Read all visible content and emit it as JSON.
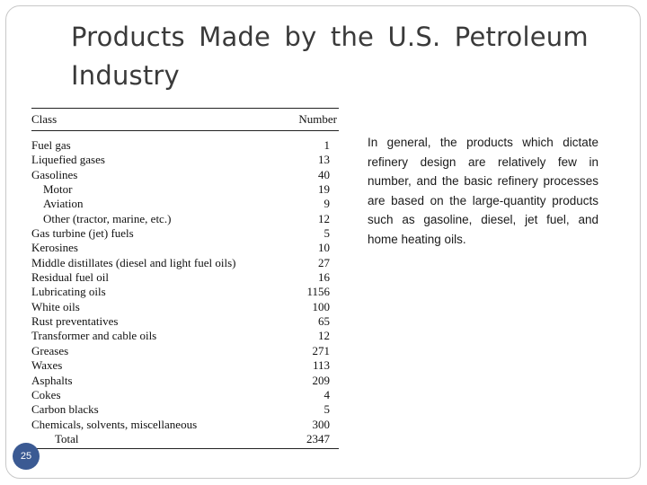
{
  "slide": {
    "title": "Products Made by the U.S. Petroleum Industry",
    "page_number": "25",
    "body_text": "In general, the products which dictate refinery design are relatively few in number, and the basic refinery processes are based on the large-quantity products such as gasoline, diesel, jet fuel, and home heating oils."
  },
  "table": {
    "headers": {
      "class": "Class",
      "number": "Number"
    },
    "rows": [
      {
        "class": "Fuel gas",
        "number": "1",
        "indent": 0
      },
      {
        "class": "Liquefied gases",
        "number": "13",
        "indent": 0
      },
      {
        "class": "Gasolines",
        "number": "40",
        "indent": 0
      },
      {
        "class": "Motor",
        "number": "19",
        "indent": 1
      },
      {
        "class": "Aviation",
        "number": "9",
        "indent": 1
      },
      {
        "class": "Other (tractor, marine, etc.)",
        "number": "12",
        "indent": 1
      },
      {
        "class": "Gas turbine (jet) fuels",
        "number": "5",
        "indent": 0
      },
      {
        "class": "Kerosines",
        "number": "10",
        "indent": 0
      },
      {
        "class": "Middle distillates (diesel and light fuel oils)",
        "number": "27",
        "indent": 0
      },
      {
        "class": "Residual fuel oil",
        "number": "16",
        "indent": 0
      },
      {
        "class": "Lubricating oils",
        "number": "1156",
        "indent": 0
      },
      {
        "class": "White oils",
        "number": "100",
        "indent": 0
      },
      {
        "class": "Rust preventatives",
        "number": "65",
        "indent": 0
      },
      {
        "class": "Transformer and cable oils",
        "number": "12",
        "indent": 0
      },
      {
        "class": "Greases",
        "number": "271",
        "indent": 0
      },
      {
        "class": "Waxes",
        "number": "113",
        "indent": 0
      },
      {
        "class": "Asphalts",
        "number": "209",
        "indent": 0
      },
      {
        "class": "Cokes",
        "number": "4",
        "indent": 0
      },
      {
        "class": "Carbon blacks",
        "number": "5",
        "indent": 0
      },
      {
        "class": "Chemicals, solvents, miscellaneous",
        "number": "300",
        "indent": 0
      },
      {
        "class": "Total",
        "number": "2347",
        "indent": 2
      }
    ]
  },
  "colors": {
    "badge": "#3b5a93",
    "title": "#3a3a3a"
  }
}
